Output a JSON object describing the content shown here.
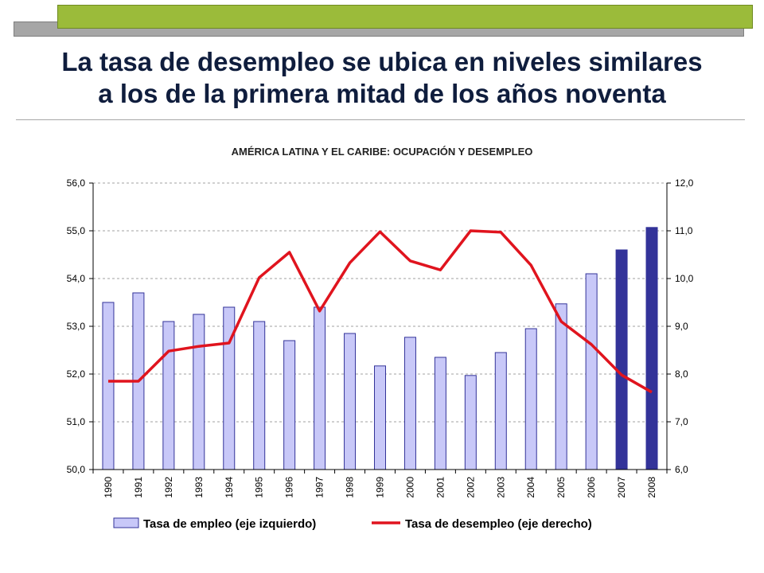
{
  "slide": {
    "title_line1": "La tasa de desempleo se ubica en niveles similares",
    "title_line2": "a los de la primera mitad de los años noventa"
  },
  "colors": {
    "bar_fill": "#c8c8f8",
    "bar_fill_highlight": "#333399",
    "bar_stroke": "#333399",
    "line": "#e0141e",
    "grid": "#a0a0a0",
    "title_text": "#0f1d3d"
  },
  "chart_data": {
    "type": "bar",
    "title": "AMÉRICA LATINA Y EL CARIBE: OCUPACIÓN Y DESEMPLEO",
    "categories": [
      "1990",
      "1991",
      "1992",
      "1993",
      "1994",
      "1995",
      "1996",
      "1997",
      "1998",
      "1999",
      "2000",
      "2001",
      "2002",
      "2003",
      "2004",
      "2005",
      "2006",
      "2007",
      "2008"
    ],
    "highlight_categories": [
      "2007",
      "2008"
    ],
    "ylim_left": [
      50,
      56
    ],
    "ylim_right": [
      6,
      12
    ],
    "yticks_left": [
      "50,0",
      "51,0",
      "52,0",
      "53,0",
      "54,0",
      "55,0",
      "56,0"
    ],
    "yticks_right": [
      "6,0",
      "7,0",
      "8,0",
      "9,0",
      "10,0",
      "11,0",
      "12,0"
    ],
    "grid": true,
    "legend_position": "bottom",
    "series": [
      {
        "name": "Tasa de empleo (eje izquierdo)",
        "type": "bar",
        "axis": "left",
        "values": [
          53.5,
          53.7,
          53.1,
          53.25,
          53.4,
          53.1,
          52.7,
          53.4,
          52.85,
          52.17,
          52.77,
          52.35,
          51.97,
          52.45,
          52.95,
          53.47,
          54.1,
          54.6,
          55.07
        ]
      },
      {
        "name": "Tasa de desempleo (eje derecho)",
        "type": "line",
        "axis": "right",
        "values": [
          7.85,
          7.85,
          8.48,
          8.58,
          8.65,
          10.02,
          10.55,
          9.32,
          10.33,
          10.98,
          10.37,
          10.18,
          11.0,
          10.97,
          10.28,
          9.1,
          8.62,
          7.98,
          7.62
        ]
      }
    ]
  }
}
